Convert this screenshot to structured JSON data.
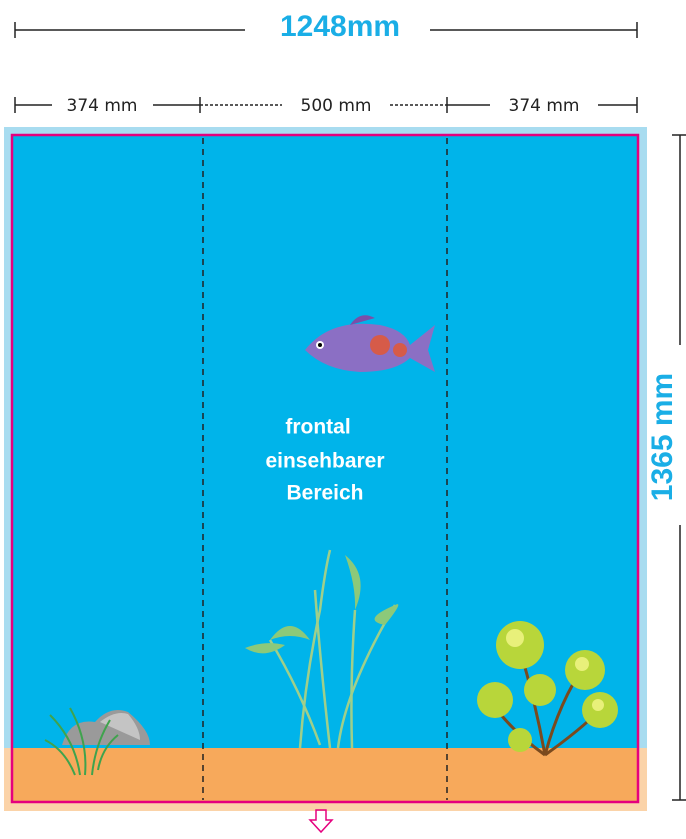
{
  "dimensions": {
    "width": "1248mm",
    "segments": [
      "374 mm",
      "500 mm",
      "374 mm"
    ],
    "height": "1365 mm"
  },
  "center_label": [
    "frontal",
    "einsehbarer",
    "Bereich"
  ]
}
